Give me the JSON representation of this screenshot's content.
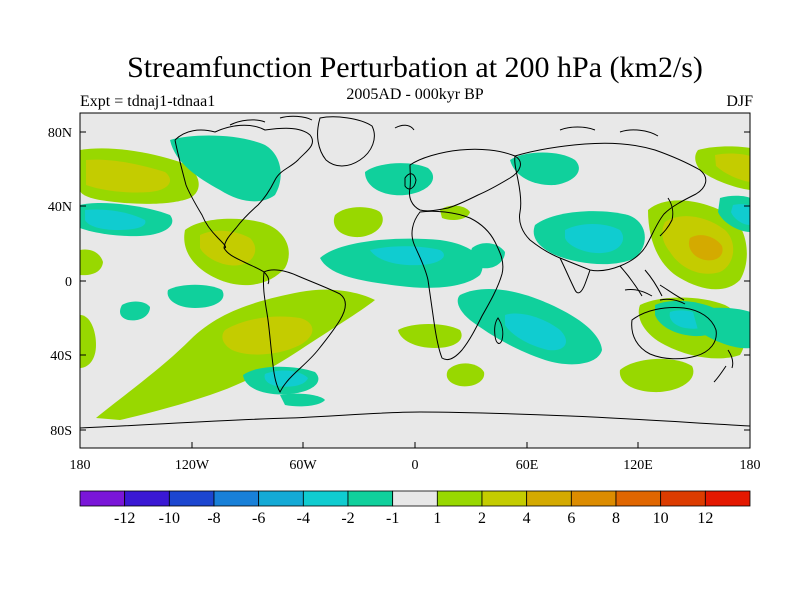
{
  "plot": {
    "title": "Streamfunction Perturbation at 200 hPa (km2/s)",
    "subtitle": "2005AD - 000kyr BP",
    "left_label": "Expt = tdnaj1-tdnaa1",
    "right_label": "DJF"
  },
  "axes": {
    "x_ticks": [
      "180",
      "120W",
      "60W",
      "0",
      "60E",
      "120E",
      "180"
    ],
    "y_ticks": [
      "80N",
      "40N",
      "0",
      "40S",
      "80S"
    ]
  },
  "colorbar": {
    "colors": [
      "#7a16d8",
      "#3a18d4",
      "#1c46d0",
      "#1880d8",
      "#14aad6",
      "#10ccd0",
      "#10d09c",
      "#e8e8e8",
      "#98d800",
      "#c4cc00",
      "#d4aa00",
      "#dc8c00",
      "#e06600",
      "#dc3c00",
      "#e41800"
    ],
    "labels": [
      "-12",
      "-10",
      "-8",
      "-6",
      "-4",
      "-2",
      "-1",
      "1",
      "2",
      "4",
      "6",
      "8",
      "10",
      "12"
    ]
  },
  "colors": {
    "land_outline": "#000000",
    "background": "#e8e8e8",
    "neg1": "#10d09c",
    "neg2": "#10ccd0",
    "pos1": "#98d800",
    "pos2": "#c4cc00",
    "pos3": "#d4aa00"
  }
}
